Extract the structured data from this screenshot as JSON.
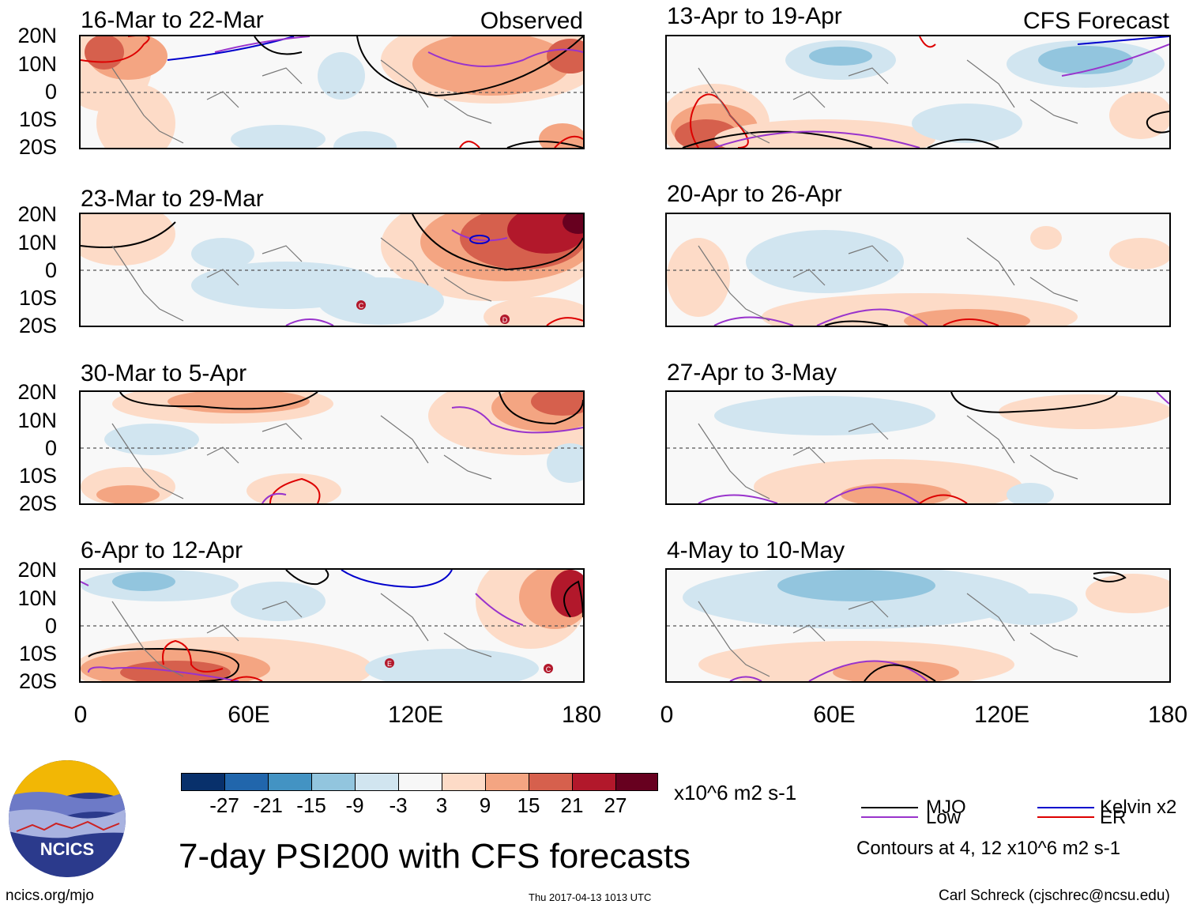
{
  "left_header": "Observed",
  "right_header": "CFS Forecast",
  "panels_left": [
    {
      "title": "16-Mar to 22-Mar"
    },
    {
      "title": "23-Mar to 29-Mar"
    },
    {
      "title": "30-Mar to 5-Apr"
    },
    {
      "title": "6-Apr to 12-Apr"
    }
  ],
  "panels_right": [
    {
      "title": "13-Apr to 19-Apr"
    },
    {
      "title": "20-Apr to 26-Apr"
    },
    {
      "title": "27-Apr to 3-May"
    },
    {
      "title": "4-May to 10-May"
    }
  ],
  "lat_labels": [
    "20N",
    "10N",
    "0",
    "10S",
    "20S"
  ],
  "lon_labels": [
    "0",
    "60E",
    "120E",
    "180"
  ],
  "colorbar": {
    "colors": [
      "#08306b",
      "#2166ac",
      "#4393c3",
      "#92c5de",
      "#d1e5f0",
      "#f7f7f7",
      "#fddbc7",
      "#f4a582",
      "#d6604d",
      "#b2182b",
      "#67001f"
    ],
    "labels": [
      "-27",
      "-21",
      "-15",
      "-9",
      "-3",
      "3",
      "9",
      "15",
      "21",
      "27"
    ],
    "units": "x10^6 m2 s-1"
  },
  "main_title": "7-day PSI200 with CFS forecasts",
  "legend": {
    "mjo": {
      "label": "MJO",
      "color": "#000000"
    },
    "kelvin": {
      "label": "Kelvin x2",
      "color": "#0000cc"
    },
    "low": {
      "label": "Low",
      "color": "#9933cc"
    },
    "er": {
      "label": "ER",
      "color": "#dd0000"
    },
    "contours_note": "Contours at 4, 12 x10^6 m2 s-1"
  },
  "logo_text": "NCICS",
  "footer": {
    "website": "ncics.org/mjo",
    "timestamp": "Thu 2017-04-13 1013 UTC",
    "author": "Carl Schreck (cjschrec@ncsu.edu)"
  },
  "storm_markers": {
    "panel2": [
      "C",
      "D"
    ],
    "panel4": [
      "E",
      "C"
    ]
  }
}
